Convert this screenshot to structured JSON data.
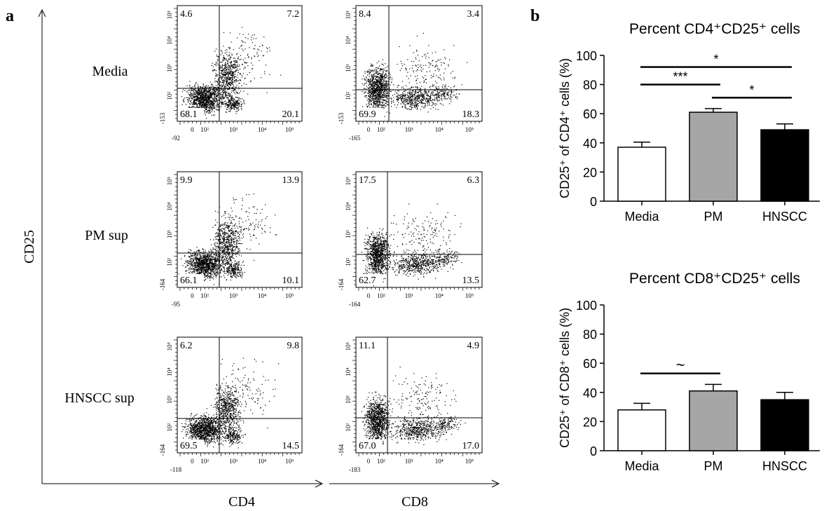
{
  "panel_labels": {
    "a": "a",
    "b": "b"
  },
  "colors": {
    "ink": "#000000",
    "pm_bar": "#a6a6a6",
    "media_bar": "#ffffff",
    "hnscc_bar": "#000000"
  },
  "flow": {
    "y_axis_label": "CD25",
    "x_axis_labels": [
      "CD4",
      "CD8"
    ],
    "row_labels": [
      "Media",
      "PM sup",
      "HNSCC sup"
    ],
    "x_tick_labels": [
      "0",
      "10²",
      "10³",
      "10⁴",
      "10⁵"
    ],
    "y_tick_labels": [
      "10²",
      "10³",
      "10⁴",
      "10⁵"
    ],
    "plots": [
      {
        "marker": "CD4",
        "condition": "Media",
        "q_ul": "4.6",
        "q_ur": "7.2",
        "q_ll": "68.1",
        "q_lr": "20.1",
        "x_min": "-92",
        "y_min": "-153"
      },
      {
        "marker": "CD8",
        "condition": "Media",
        "q_ul": "8.4",
        "q_ur": "3.4",
        "q_ll": "69.9",
        "q_lr": "18.3",
        "x_min": "-165",
        "y_min": "-153"
      },
      {
        "marker": "CD4",
        "condition": "PM sup",
        "q_ul": "9.9",
        "q_ur": "13.9",
        "q_ll": "66.1",
        "q_lr": "10.1",
        "x_min": "-95",
        "y_min": "-164"
      },
      {
        "marker": "CD8",
        "condition": "PM sup",
        "q_ul": "17.5",
        "q_ur": "6.3",
        "q_ll": "62.7",
        "q_lr": "13.5",
        "x_min": "-164",
        "y_min": "-164"
      },
      {
        "marker": "CD4",
        "condition": "HNSCC sup",
        "q_ul": "6.2",
        "q_ur": "9.8",
        "q_ll": "69.5",
        "q_lr": "14.5",
        "x_min": "-118",
        "y_min": "-164"
      },
      {
        "marker": "CD8",
        "condition": "HNSCC sup",
        "q_ul": "11.1",
        "q_ur": "4.9",
        "q_ll": "67.0",
        "q_lr": "17.0",
        "x_min": "-183",
        "y_min": "-164"
      }
    ]
  },
  "chart_data": [
    {
      "type": "bar",
      "title": "Percent CD4⁺CD25⁺ cells",
      "ylabel": "CD25⁺ of CD4⁺ cells  (%)",
      "xlabel": "",
      "categories": [
        "Media",
        "PM",
        "HNSCC"
      ],
      "values": [
        37,
        61,
        49
      ],
      "errors": [
        3.5,
        2.5,
        4
      ],
      "ylim": [
        0,
        100
      ],
      "yticks": [
        0,
        20,
        40,
        60,
        80,
        100
      ],
      "significance": [
        {
          "from": 0,
          "to": 2,
          "label": "*",
          "y": 92
        },
        {
          "from": 0,
          "to": 1,
          "label": "***",
          "y": 80
        },
        {
          "from": 1,
          "to": 2,
          "label": "*",
          "y": 71
        }
      ]
    },
    {
      "type": "bar",
      "title": "Percent CD8⁺CD25⁺ cells",
      "ylabel": "CD25⁺ of CD8⁺ cells (%)",
      "xlabel": "",
      "categories": [
        "Media",
        "PM",
        "HNSCC"
      ],
      "values": [
        28,
        41,
        35
      ],
      "errors": [
        4.5,
        4.5,
        5
      ],
      "ylim": [
        0,
        100
      ],
      "yticks": [
        0,
        20,
        40,
        60,
        80,
        100
      ],
      "significance": [
        {
          "from": 0,
          "to": 1,
          "label": "~",
          "y": 53
        }
      ]
    }
  ]
}
